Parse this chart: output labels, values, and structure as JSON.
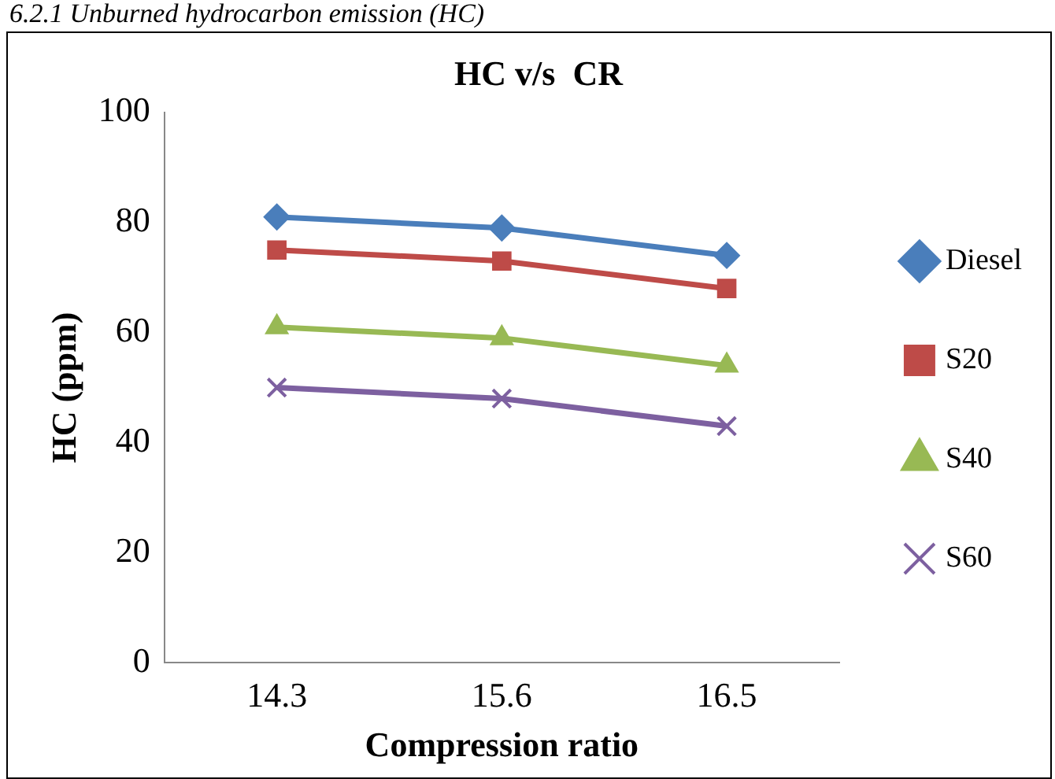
{
  "chart_data": {
    "type": "line",
    "title": "HC v/s  CR",
    "xlabel": "Compression ratio",
    "ylabel": "HC (ppm)",
    "annotations": [
      "6.2.1  Unburned hydrocarbon emission (HC)"
    ],
    "categories": [
      "14.3",
      "15.6",
      "16.5"
    ],
    "ylim": [
      0,
      100
    ],
    "yticks": [
      0,
      20,
      40,
      60,
      80,
      100
    ],
    "grid": false,
    "legend": "right",
    "line_style": "solid",
    "series": [
      {
        "name": "Diesel",
        "color": "#4a7ebb",
        "marker": "diamond",
        "values": [
          81,
          79,
          74
        ]
      },
      {
        "name": "S20",
        "color": "#be4b48",
        "marker": "square",
        "values": [
          75,
          73,
          68
        ]
      },
      {
        "name": "S40",
        "color": "#98b954",
        "marker": "triangle",
        "values": [
          61,
          59,
          54
        ]
      },
      {
        "name": "S60",
        "color": "#7d60a0",
        "marker": "cross",
        "values": [
          50,
          48,
          43
        ]
      }
    ]
  }
}
